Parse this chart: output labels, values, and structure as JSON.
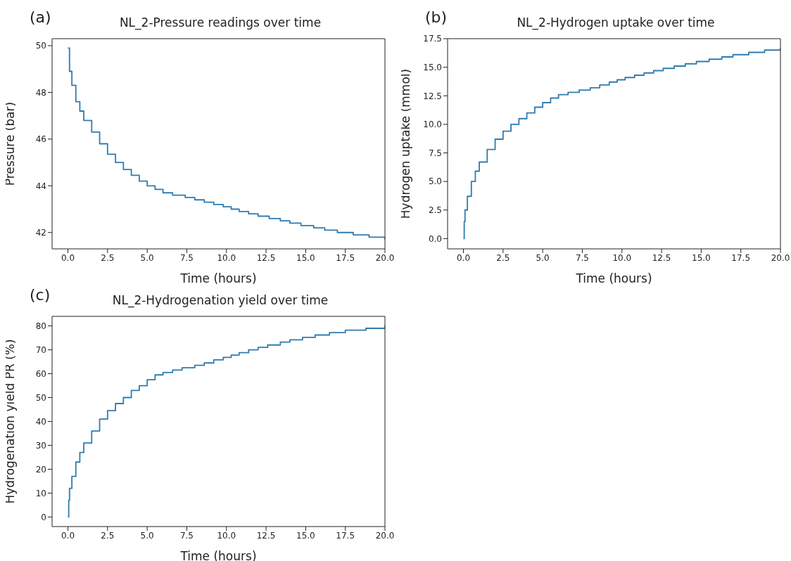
{
  "chart_data": [
    {
      "type": "step",
      "title": "NL_2-Pressure readings over time",
      "xlabel": "Time (hours)",
      "ylabel": "Pressure (bar)",
      "annotations": [
        "(a)"
      ],
      "grid": false,
      "marker": "none",
      "x": [
        0,
        0.1,
        0.25,
        0.5,
        0.75,
        1,
        1.5,
        2,
        2.5,
        3,
        3.5,
        4,
        4.5,
        5,
        5.5,
        6,
        6.6,
        7.4,
        8,
        8.6,
        9.2,
        9.8,
        10.3,
        10.8,
        11.4,
        12,
        12.7,
        13.4,
        14,
        14.7,
        15.5,
        16.2,
        17,
        18,
        19,
        20
      ],
      "series": [
        {
          "color": "#2f7bb0",
          "values": [
            49.9,
            48.9,
            48.3,
            47.6,
            47.2,
            46.8,
            46.3,
            45.8,
            45.35,
            45.0,
            44.7,
            44.45,
            44.2,
            44.0,
            43.85,
            43.7,
            43.6,
            43.5,
            43.4,
            43.3,
            43.2,
            43.1,
            43.0,
            42.9,
            42.8,
            42.7,
            42.6,
            42.5,
            42.4,
            42.3,
            42.2,
            42.1,
            42.0,
            41.9,
            41.8,
            41.7
          ]
        }
      ],
      "xlim": [
        -1,
        20
      ],
      "xticks": [
        {
          "value": 0,
          "label": "0.0"
        },
        {
          "value": 2.5,
          "label": "2.5"
        },
        {
          "value": 5,
          "label": "5.0"
        },
        {
          "value": 7.5,
          "label": "7.5"
        },
        {
          "value": 10,
          "label": "10.0"
        },
        {
          "value": 12.5,
          "label": "12.5"
        },
        {
          "value": 15,
          "label": "15.0"
        },
        {
          "value": 17.5,
          "label": "17.5"
        },
        {
          "value": 20,
          "label": "20.0"
        }
      ],
      "ylim": [
        41.3,
        50.3
      ],
      "yticks": [
        42,
        44,
        46,
        48,
        50
      ]
    },
    {
      "type": "step",
      "title": "NL_2-Hydrogen uptake over time",
      "xlabel": "Time (hours)",
      "ylabel": "Hydrogen uptake (mmol)",
      "annotations": [
        "(b)"
      ],
      "grid": false,
      "marker": "none",
      "x": [
        0,
        0.05,
        0.1,
        0.25,
        0.5,
        0.75,
        1,
        1.5,
        2,
        2.5,
        3,
        3.5,
        4,
        4.5,
        5,
        5.5,
        6,
        6.6,
        7.3,
        8,
        8.6,
        9.2,
        9.7,
        10.2,
        10.8,
        11.4,
        12,
        12.6,
        13.3,
        14,
        14.7,
        15.5,
        16.3,
        17,
        18,
        19,
        20
      ],
      "series": [
        {
          "color": "#2f7bb0",
          "values": [
            0,
            1.5,
            2.5,
            3.7,
            5.0,
            5.9,
            6.7,
            7.8,
            8.7,
            9.4,
            10.0,
            10.5,
            11.0,
            11.5,
            11.9,
            12.3,
            12.6,
            12.8,
            13.0,
            13.2,
            13.45,
            13.7,
            13.9,
            14.1,
            14.3,
            14.5,
            14.7,
            14.9,
            15.1,
            15.3,
            15.5,
            15.7,
            15.9,
            16.1,
            16.3,
            16.5,
            16.7
          ]
        }
      ],
      "xlim": [
        -1,
        20
      ],
      "xticks": [
        {
          "value": 0,
          "label": "0.0"
        },
        {
          "value": 2.5,
          "label": "2.5"
        },
        {
          "value": 5,
          "label": "5.0"
        },
        {
          "value": 7.5,
          "label": "7.5"
        },
        {
          "value": 10,
          "label": "10.0"
        },
        {
          "value": 12.5,
          "label": "12.5"
        },
        {
          "value": 15,
          "label": "15.0"
        },
        {
          "value": 17.5,
          "label": "17.5"
        },
        {
          "value": 20,
          "label": "20.0"
        }
      ],
      "ylim": [
        -0.9,
        17.5
      ],
      "yticks": [
        {
          "value": 0,
          "label": "0.0"
        },
        {
          "value": 2.5,
          "label": "2.5"
        },
        {
          "value": 5,
          "label": "5.0"
        },
        {
          "value": 7.5,
          "label": "7.5"
        },
        {
          "value": 10,
          "label": "10.0"
        },
        {
          "value": 12.5,
          "label": "12.5"
        },
        {
          "value": 15,
          "label": "15.0"
        },
        {
          "value": 17.5,
          "label": "17.5"
        }
      ]
    },
    {
      "type": "step",
      "title": "NL_2-Hydrogenation yield over time",
      "xlabel": "Time (hours)",
      "ylabel": "Hydrogenation yield PR (%)",
      "annotations": [
        "(c)"
      ],
      "grid": false,
      "marker": "none",
      "x": [
        0,
        0.05,
        0.1,
        0.25,
        0.5,
        0.75,
        1,
        1.5,
        2,
        2.5,
        3,
        3.5,
        4,
        4.5,
        5,
        5.5,
        6,
        6.6,
        7.2,
        8,
        8.6,
        9.2,
        9.8,
        10.3,
        10.8,
        11.4,
        12,
        12.6,
        13.4,
        14,
        14.8,
        15.6,
        16.5,
        17.5,
        18.8,
        20
      ],
      "series": [
        {
          "color": "#2f7bb0",
          "values": [
            0,
            7,
            12,
            17,
            23,
            27,
            31,
            36,
            41,
            44.5,
            47.5,
            50,
            53,
            55,
            57.5,
            59.5,
            60.5,
            61.5,
            62.5,
            63.5,
            64.5,
            65.8,
            66.8,
            67.8,
            68.8,
            70,
            71,
            72,
            73.2,
            74.2,
            75.2,
            76.2,
            77.2,
            78.2,
            79,
            80.2
          ]
        }
      ],
      "xlim": [
        -1,
        20
      ],
      "xticks": [
        {
          "value": 0,
          "label": "0.0"
        },
        {
          "value": 2.5,
          "label": "2.5"
        },
        {
          "value": 5,
          "label": "5.0"
        },
        {
          "value": 7.5,
          "label": "7.5"
        },
        {
          "value": 10,
          "label": "10.0"
        },
        {
          "value": 12.5,
          "label": "12.5"
        },
        {
          "value": 15,
          "label": "15.0"
        },
        {
          "value": 17.5,
          "label": "17.5"
        },
        {
          "value": 20,
          "label": "20.0"
        }
      ],
      "ylim": [
        -4,
        84
      ],
      "yticks": [
        0,
        10,
        20,
        30,
        40,
        50,
        60,
        70,
        80
      ]
    }
  ]
}
